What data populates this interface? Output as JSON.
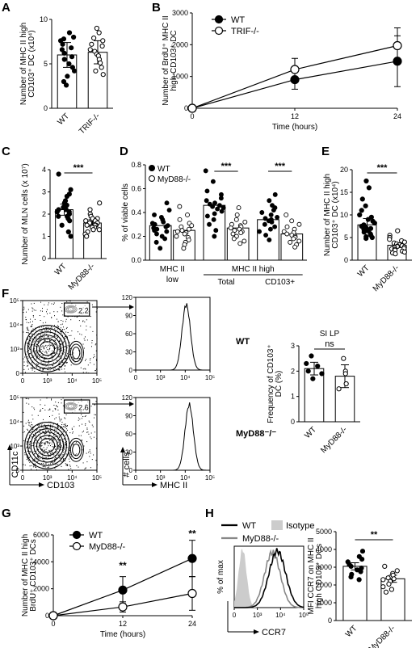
{
  "panel_letters": [
    "A",
    "B",
    "C",
    "D",
    "E",
    "F",
    "G",
    "H"
  ],
  "chart_data": [
    {
      "panel": "A",
      "type": "bar",
      "categories": [
        "WT",
        "TRIF-/-"
      ],
      "values": [
        6.0,
        6.3
      ],
      "errors": [
        1.4,
        1.3
      ],
      "points": [
        [
          8.5,
          8.0,
          7.8,
          7.6,
          7.2,
          6.8,
          6.6,
          6.2,
          5.8,
          5.5,
          5.0,
          4.6,
          4.2,
          3.6,
          3.0,
          2.6
        ],
        [
          9.0,
          8.5,
          7.9,
          7.6,
          7.2,
          7.0,
          6.6,
          6.4,
          6.1,
          5.9,
          5.5,
          5.1,
          4.6,
          4.2,
          3.8
        ]
      ],
      "ylabel": "Number of MHC II high CD103+ DC (x10^4)",
      "ylim": [
        0,
        10
      ],
      "yticks": [
        "0",
        "5",
        "10"
      ]
    },
    {
      "panel": "B",
      "type": "line",
      "x": [
        0,
        12,
        24
      ],
      "series": [
        {
          "name": "WT",
          "values": [
            0,
            900,
            1480
          ],
          "errors": [
            0,
            300,
            800
          ],
          "marker": "filled"
        },
        {
          "name": "TRIF-/-",
          "values": [
            0,
            1220,
            1970
          ],
          "errors": [
            0,
            350,
            560
          ],
          "marker": "open"
        }
      ],
      "xlabel": "Time (hours)",
      "ylabel": "Number of BrdU+ MHC II high CD103+ DC",
      "xlim": [
        0,
        24
      ],
      "ylim": [
        0,
        3000
      ],
      "xticks": [
        "0",
        "12",
        "24"
      ],
      "yticks": [
        "0",
        "1000",
        "2000",
        "3000"
      ],
      "legend": "top-left"
    },
    {
      "panel": "C",
      "type": "bar",
      "categories": [
        "WT",
        "MyD88-/-"
      ],
      "values": [
        2.2,
        1.6
      ],
      "errors": [
        0.25,
        0.15
      ],
      "points": [
        [
          3.8,
          3.1,
          2.9,
          2.8,
          2.6,
          2.5,
          2.4,
          2.4,
          2.3,
          2.2,
          2.2,
          2.1,
          2.1,
          2.0,
          1.9,
          1.9,
          1.8,
          1.7,
          1.5,
          1.2,
          1.0
        ],
        [
          2.5,
          2.2,
          2.0,
          1.9,
          1.8,
          1.8,
          1.7,
          1.7,
          1.6,
          1.6,
          1.6,
          1.5,
          1.5,
          1.5,
          1.4,
          1.4,
          1.3,
          1.3,
          1.2,
          1.1,
          1.0
        ]
      ],
      "ylabel": "Number of MLN cells (x 10^7)",
      "ylim": [
        0,
        4
      ],
      "yticks": [
        "0",
        "1",
        "2",
        "3",
        "4"
      ],
      "significance": "***"
    },
    {
      "panel": "D",
      "type": "bar",
      "categories": [
        "MHC II low",
        "Total",
        "CD103+"
      ],
      "series": [
        {
          "name": "WT",
          "values": [
            0.29,
            0.46,
            0.34
          ],
          "marker": "filled",
          "points": [
            [
              0.48,
              0.42,
              0.38,
              0.36,
              0.34,
              0.32,
              0.31,
              0.3,
              0.29,
              0.28,
              0.27,
              0.26,
              0.25,
              0.24,
              0.22,
              0.2,
              0.18,
              0.15,
              0.1
            ],
            [
              0.75,
              0.66,
              0.58,
              0.55,
              0.52,
              0.5,
              0.48,
              0.47,
              0.46,
              0.45,
              0.44,
              0.43,
              0.41,
              0.39,
              0.37,
              0.34,
              0.3,
              0.25,
              0.2
            ],
            [
              0.55,
              0.5,
              0.46,
              0.44,
              0.42,
              0.4,
              0.38,
              0.36,
              0.35,
              0.34,
              0.33,
              0.32,
              0.3,
              0.28,
              0.26,
              0.24,
              0.21,
              0.17
            ]
          ]
        },
        {
          "name": "MyD88-/-",
          "values": [
            0.25,
            0.27,
            0.22
          ],
          "marker": "open",
          "points": [
            [
              0.45,
              0.38,
              0.34,
              0.31,
              0.29,
              0.28,
              0.26,
              0.25,
              0.24,
              0.23,
              0.22,
              0.2,
              0.19,
              0.17,
              0.15,
              0.13,
              0.1
            ],
            [
              0.44,
              0.38,
              0.34,
              0.32,
              0.3,
              0.29,
              0.28,
              0.27,
              0.26,
              0.25,
              0.24,
              0.23,
              0.22,
              0.2,
              0.18,
              0.16,
              0.14
            ],
            [
              0.38,
              0.33,
              0.3,
              0.28,
              0.26,
              0.24,
              0.23,
              0.22,
              0.21,
              0.2,
              0.19,
              0.18,
              0.16,
              0.15,
              0.13,
              0.11
            ]
          ]
        }
      ],
      "ylabel": "% of viable cells",
      "ylim": [
        0,
        0.8
      ],
      "yticks": [
        "0.0",
        "0.2",
        "0.4",
        "0.6",
        "0.8"
      ],
      "group_labels": [
        "MHC II",
        "low",
        "MHC II high",
        "Total",
        "CD103+"
      ],
      "significance": [
        "",
        "***",
        "***"
      ],
      "legend": "top-left"
    },
    {
      "panel": "E",
      "type": "bar",
      "categories": [
        "WT",
        "MyD88-/-"
      ],
      "values": [
        7.8,
        3.3
      ],
      "errors": [
        1.4,
        0.5
      ],
      "points": [
        [
          17.5,
          16.0,
          13.5,
          12.0,
          11.0,
          10.0,
          9.5,
          9.0,
          8.6,
          8.2,
          7.8,
          7.5,
          7.2,
          7.0,
          6.8,
          6.5,
          6.2,
          5.8,
          5.5,
          5.2,
          5.0,
          4.8
        ],
        [
          6.5,
          5.5,
          5.0,
          4.6,
          4.3,
          4.0,
          3.8,
          3.6,
          3.4,
          3.2,
          3.1,
          3.0,
          2.9,
          2.8,
          2.6,
          2.5,
          2.4,
          2.2,
          2.0,
          1.8,
          1.6,
          1.4
        ]
      ],
      "ylabel": "Number of MHC II high CD103+ DC (x10^4)",
      "ylim": [
        0,
        20
      ],
      "yticks": [
        "0",
        "5",
        "10",
        "15",
        "20"
      ],
      "significance": "***"
    },
    {
      "panel": "F",
      "type": "bar",
      "title": "SI LP",
      "categories": [
        "WT",
        "MyD88-/-"
      ],
      "values": [
        2.1,
        1.8
      ],
      "errors": [
        0.25,
        0.45
      ],
      "points": [
        [
          2.6,
          2.3,
          2.2,
          2.0,
          1.9,
          1.7
        ],
        [
          2.5,
          2.0,
          1.9,
          1.5,
          1.3
        ]
      ],
      "ylabel": "Frequency of CD103+ DC (%)",
      "ylim": [
        0,
        3
      ],
      "yticks": [
        "0",
        "1",
        "2",
        "3"
      ],
      "significance": "ns"
    },
    {
      "panel": "G",
      "type": "line",
      "x": [
        0,
        12,
        24
      ],
      "series": [
        {
          "name": "WT",
          "values": [
            0,
            1900,
            4250
          ],
          "errors": [
            0,
            1000,
            1350
          ],
          "marker": "filled"
        },
        {
          "name": "MyD88-/-",
          "values": [
            0,
            650,
            1650
          ],
          "errors": [
            0,
            380,
            1250
          ],
          "marker": "open"
        }
      ],
      "xlabel": "Time (hours)",
      "ylabel": "Number of MHC II high BrdU+ CD103+ DCs",
      "xlim": [
        0,
        24
      ],
      "ylim": [
        0,
        6000
      ],
      "xticks": [
        "0",
        "12",
        "24"
      ],
      "yticks": [
        "0",
        "2000",
        "4000",
        "6000"
      ],
      "significance": [
        "",
        "**",
        "**"
      ],
      "legend": "top-left"
    },
    {
      "panel": "H",
      "type": "bar",
      "categories": [
        "WT",
        "MyD88-/-"
      ],
      "values": [
        3050,
        2350
      ],
      "errors": [
        200,
        200
      ],
      "points": [
        [
          3900,
          3600,
          3450,
          3300,
          3150,
          3050,
          2950,
          2850,
          2750,
          2600,
          2450,
          2300
        ],
        [
          3050,
          2800,
          2650,
          2550,
          2400,
          2350,
          2300,
          2200,
          2050,
          1900,
          1750,
          1600
        ]
      ],
      "ylabel": "MFI CCR7 on MHC II high CD103+ DCs",
      "ylim": [
        0,
        5000
      ],
      "yticks": [
        "0",
        "1000",
        "2000",
        "3000",
        "4000",
        "5000"
      ],
      "significance": "**"
    }
  ],
  "flow": {
    "gate_values": [
      "2.2",
      "2.6"
    ],
    "axis_ticks": [
      "0",
      "10³",
      "10⁴",
      "10⁵"
    ],
    "y_ticks": [
      "0",
      "10³",
      "10⁴",
      "10⁵"
    ],
    "hist_ticks": [
      "0",
      "30",
      "60",
      "90",
      "120"
    ],
    "row_labels": [
      "WT",
      "MyD88⁻/⁻"
    ],
    "xlabel_scatter": "CD103",
    "ylabel_scatter": "CD11c",
    "xlabel_hist": "MHC II",
    "ylabel_hist": "# cells"
  },
  "ccr7": {
    "legend": [
      "WT",
      "Isotype",
      "MyD88-/-"
    ],
    "ylabel": "% of max",
    "xlabel": "CCR7",
    "xticks": [
      "0",
      "10³",
      "10⁴",
      "10⁵"
    ],
    "colors": {
      "wt": "#000000",
      "isotype": "#cccccc",
      "myd88": "#888888"
    }
  }
}
